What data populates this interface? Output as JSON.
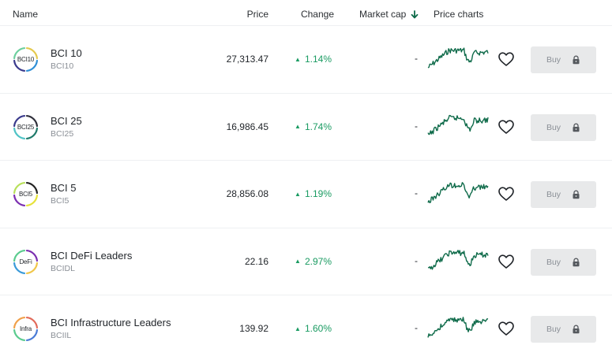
{
  "header": {
    "name": "Name",
    "price": "Price",
    "change": "Change",
    "market_cap": "Market cap",
    "price_charts": "Price charts",
    "sort_icon": "arrow-down-icon"
  },
  "colors": {
    "positive": "#1a9b62",
    "chart_line": "#0f6b4a",
    "buy_bg": "#e8e9ea"
  },
  "rows": [
    {
      "logo_text": "BCI10",
      "name": "BCI 10",
      "ticker": "BCI10",
      "price": "27,313.47",
      "change": "1.14%",
      "market_cap": "-",
      "buy_label": "Buy",
      "ring": [
        "#e4c94e",
        "#2f8fd6",
        "#3a3a8c",
        "#6ccf9e"
      ]
    },
    {
      "logo_text": "BCI25",
      "name": "BCI 25",
      "ticker": "BCI25",
      "price": "16,986.45",
      "change": "1.74%",
      "market_cap": "-",
      "buy_label": "Buy",
      "ring": [
        "#2f2f3a",
        "#1f7a6a",
        "#4fc3c6",
        "#3a3a8c"
      ]
    },
    {
      "logo_text": "BCI5",
      "name": "BCI 5",
      "ticker": "BCI5",
      "price": "28,856.08",
      "change": "1.19%",
      "market_cap": "-",
      "buy_label": "Buy",
      "ring": [
        "#222222",
        "#e6e23a",
        "#7b2fb0",
        "#b8e05a"
      ]
    },
    {
      "logo_text": "DeFi",
      "name": "BCI DeFi Leaders",
      "ticker": "BCIDL",
      "price": "22.16",
      "change": "2.97%",
      "market_cap": "-",
      "buy_label": "Buy",
      "ring": [
        "#7b2fb0",
        "#f0c64a",
        "#3a9ad9",
        "#5acb8e"
      ]
    },
    {
      "logo_text": "Infra",
      "name": "BCI Infrastructure Leaders",
      "ticker": "BCIIL",
      "price": "139.92",
      "change": "1.60%",
      "market_cap": "-",
      "buy_label": "Buy",
      "ring": [
        "#e26a5a",
        "#4a7bd6",
        "#5acb8e",
        "#f0a04a"
      ]
    }
  ]
}
